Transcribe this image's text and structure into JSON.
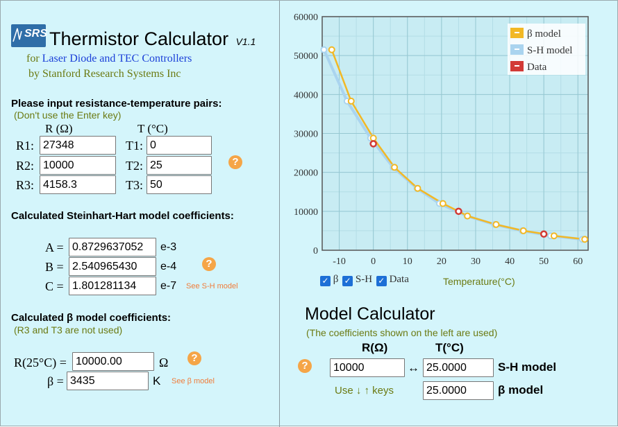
{
  "header": {
    "logo_text": "SRS",
    "title": "Thermistor Calculator",
    "version": "V1.1",
    "subtitle_prefix": "for",
    "subtitle_link": "Laser Diode and TEC Controllers",
    "byline": "by Stanford Research Systems Inc"
  },
  "input_pairs": {
    "heading": "Please input resistance-temperature pairs:",
    "note": "(Don't use the Enter key)",
    "col_r": "R (Ω)",
    "col_t": "T (°C)",
    "rows": [
      {
        "r_label": "R1:",
        "r_value": "27348",
        "t_label": "T1:",
        "t_value": "0"
      },
      {
        "r_label": "R2:",
        "r_value": "10000",
        "t_label": "T2:",
        "t_value": "25"
      },
      {
        "r_label": "R3:",
        "r_value": "4158.3",
        "t_label": "T3:",
        "t_value": "50"
      }
    ]
  },
  "sh_coeffs": {
    "heading": "Calculated Steinhart-Hart model coefficients:",
    "rows": [
      {
        "label": "A =",
        "value": "0.8729637052",
        "exp": "e-3"
      },
      {
        "label": "B =",
        "value": "2.540965430",
        "exp": "e-4"
      },
      {
        "label": "C =",
        "value": "1.801281134",
        "exp": "e-7"
      }
    ],
    "see_link": "See S-H model"
  },
  "beta_coeffs": {
    "heading": "Calculated β model coefficients:",
    "note": "(R3 and T3 are not used)",
    "r25_label": "R(25°C) =",
    "r25_value": "10000.00",
    "r25_unit": "Ω",
    "beta_label": "β =",
    "beta_value": "3435",
    "beta_unit": "K",
    "see_link": "See β model"
  },
  "help_icon": "?",
  "chart_data": {
    "type": "line",
    "xlabel": "Temperature(°C)",
    "ylabel": "",
    "xlim": [
      -15,
      63
    ],
    "ylim": [
      0,
      60000
    ],
    "xticks": [
      -10,
      0,
      10,
      20,
      30,
      40,
      50,
      60
    ],
    "yticks": [
      0,
      10000,
      20000,
      30000,
      40000,
      50000,
      60000
    ],
    "grid": true,
    "legend_position": "top-right",
    "series": [
      {
        "name": "β model",
        "color": "#f2b825",
        "x": [
          -12.2,
          -6.5,
          0.0,
          6.2,
          13.0,
          20.4,
          25.0,
          27.6,
          36.0,
          44.0,
          50.0,
          53.0,
          62.0
        ],
        "y": [
          51500,
          38300,
          28800,
          21300,
          15900,
          12000,
          10000,
          8800,
          6600,
          5000,
          4200,
          3700,
          2800
        ]
      },
      {
        "name": "S-H model",
        "color": "#aad4ef",
        "x": [
          -14.5,
          -7.7,
          -0.8,
          5.8,
          12.8,
          19.4,
          27.5,
          35.6,
          43.7,
          52.0,
          61.3
        ],
        "y": [
          51500,
          38300,
          28800,
          21300,
          15900,
          12000,
          8800,
          6600,
          5000,
          3700,
          2800
        ]
      },
      {
        "name": "Data",
        "color": "#d23a36",
        "x": [
          0,
          25,
          50
        ],
        "y": [
          27348,
          10000,
          4158.3
        ]
      }
    ],
    "checkboxes": [
      {
        "label": "β",
        "checked": true
      },
      {
        "label": "S-H",
        "checked": true
      },
      {
        "label": "Data",
        "checked": true
      }
    ]
  },
  "model_calc": {
    "title": "Model Calculator",
    "note": "(The coefficients shown on the left are used)",
    "col_r": "R(Ω)",
    "col_t": "T(°C)",
    "r_value": "10000",
    "arrow": "↔",
    "sh_t_value": "25.0000",
    "sh_label": "S-H model",
    "beta_t_value": "25.0000",
    "beta_label": "β model",
    "keys_hint": "Use ↓ ↑ keys"
  }
}
